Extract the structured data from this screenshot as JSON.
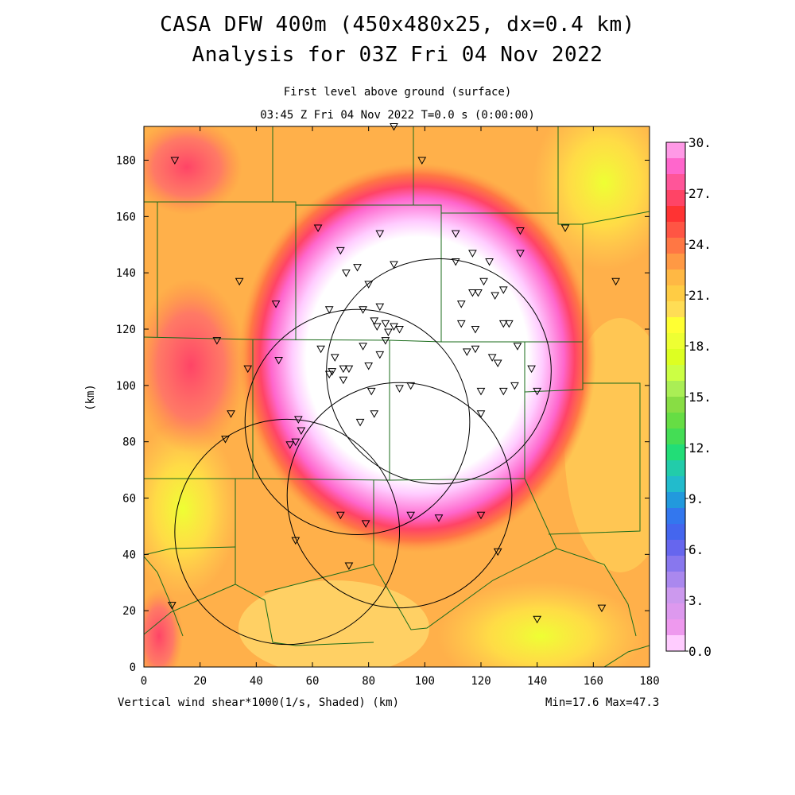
{
  "title": {
    "line1": "CASA DFW 400m (450x480x25, dx=0.4 km)",
    "line2": "Analysis for 03Z Fri 04 Nov 2022"
  },
  "subtitle": {
    "level": "First level above ground (surface)",
    "time": "03:45 Z Fri 04 Nov 2022    T=0.0 s (0:00:00)"
  },
  "axes": {
    "x_ticks": [
      "0",
      "20",
      "40",
      "60",
      "80",
      "100",
      "120",
      "140",
      "160",
      "180"
    ],
    "y_ticks": [
      "0",
      "20",
      "40",
      "60",
      "80",
      "100",
      "120",
      "140",
      "160",
      "180"
    ],
    "y_label": "(km)",
    "x_range": [
      0,
      180
    ],
    "y_range": [
      0,
      192
    ]
  },
  "footer": {
    "left": "Vertical wind shear*1000(1/s, Shaded)  (km)",
    "right": "Min=17.6 Max=47.3"
  },
  "colorbar": {
    "labels": [
      "30.",
      "27.",
      "24.",
      "21.",
      "18.",
      "15.",
      "12.",
      "9.",
      "6.",
      "3.",
      "0.0"
    ],
    "levels_top_to_bottom": [
      "#ff99e6",
      "#ff66cc",
      "#ff5599",
      "#ff4466",
      "#ff3333",
      "#ff5544",
      "#ff7744",
      "#ff9944",
      "#ffb844",
      "#ffcc44",
      "#ffdd55",
      "#ffff33",
      "#eeff33",
      "#ddff22",
      "#ccff44",
      "#aaee55",
      "#88dd44",
      "#66dd44",
      "#44dd55",
      "#22dd77",
      "#22ccaa",
      "#22bbcc",
      "#2299dd",
      "#3377ee",
      "#4466ee",
      "#6666ee",
      "#8877ee",
      "#aa88ee",
      "#cc99ee",
      "#dd99ee",
      "#ee99ee",
      "#ffccff"
    ]
  },
  "colors": {
    "county_lines": "#1a6b1a",
    "radar_circles": "#000000",
    "station_marker": "#000000"
  },
  "radars": [
    {
      "x": 105,
      "y": 105,
      "r": 40
    },
    {
      "x": 76,
      "y": 87,
      "r": 40
    },
    {
      "x": 51,
      "y": 48,
      "r": 40
    },
    {
      "x": 91,
      "y": 61,
      "r": 40
    }
  ],
  "stations": [
    [
      11,
      180
    ],
    [
      89,
      192
    ],
    [
      99,
      180
    ],
    [
      62,
      156
    ],
    [
      84,
      154
    ],
    [
      111,
      154
    ],
    [
      134,
      155
    ],
    [
      150,
      156
    ],
    [
      70,
      148
    ],
    [
      117,
      147
    ],
    [
      134,
      147
    ],
    [
      89,
      143
    ],
    [
      111,
      144
    ],
    [
      123,
      144
    ],
    [
      72,
      140
    ],
    [
      76,
      142
    ],
    [
      80,
      136
    ],
    [
      121,
      137
    ],
    [
      117,
      133
    ],
    [
      119,
      133
    ],
    [
      113,
      129
    ],
    [
      125,
      132
    ],
    [
      128,
      134
    ],
    [
      168,
      137
    ],
    [
      34,
      137
    ],
    [
      47,
      129
    ],
    [
      66,
      127
    ],
    [
      78,
      127
    ],
    [
      84,
      128
    ],
    [
      86,
      122
    ],
    [
      82,
      123
    ],
    [
      83,
      121
    ],
    [
      89,
      121
    ],
    [
      91,
      120
    ],
    [
      87,
      119
    ],
    [
      113,
      122
    ],
    [
      118,
      120
    ],
    [
      128,
      122
    ],
    [
      130,
      122
    ],
    [
      86,
      116
    ],
    [
      26,
      116
    ],
    [
      63,
      113
    ],
    [
      78,
      114
    ],
    [
      68,
      110
    ],
    [
      84,
      111
    ],
    [
      115,
      112
    ],
    [
      118,
      113
    ],
    [
      124,
      110
    ],
    [
      126,
      108
    ],
    [
      133,
      114
    ],
    [
      48,
      109
    ],
    [
      37,
      106
    ],
    [
      67,
      105
    ],
    [
      71,
      106
    ],
    [
      73,
      106
    ],
    [
      80,
      107
    ],
    [
      138,
      106
    ],
    [
      66,
      104
    ],
    [
      71,
      102
    ],
    [
      81,
      98
    ],
    [
      91,
      99
    ],
    [
      95,
      100
    ],
    [
      120,
      98
    ],
    [
      128,
      98
    ],
    [
      132,
      100
    ],
    [
      140,
      98
    ],
    [
      31,
      90
    ],
    [
      82,
      90
    ],
    [
      120,
      90
    ],
    [
      77,
      87
    ],
    [
      55,
      88
    ],
    [
      56,
      84
    ],
    [
      29,
      81
    ],
    [
      54,
      80
    ],
    [
      52,
      79
    ],
    [
      70,
      54
    ],
    [
      79,
      51
    ],
    [
      95,
      54
    ],
    [
      105,
      53
    ],
    [
      120,
      54
    ],
    [
      54,
      45
    ],
    [
      126,
      41
    ],
    [
      73,
      36
    ],
    [
      10,
      22
    ],
    [
      140,
      17
    ],
    [
      163,
      21
    ]
  ]
}
